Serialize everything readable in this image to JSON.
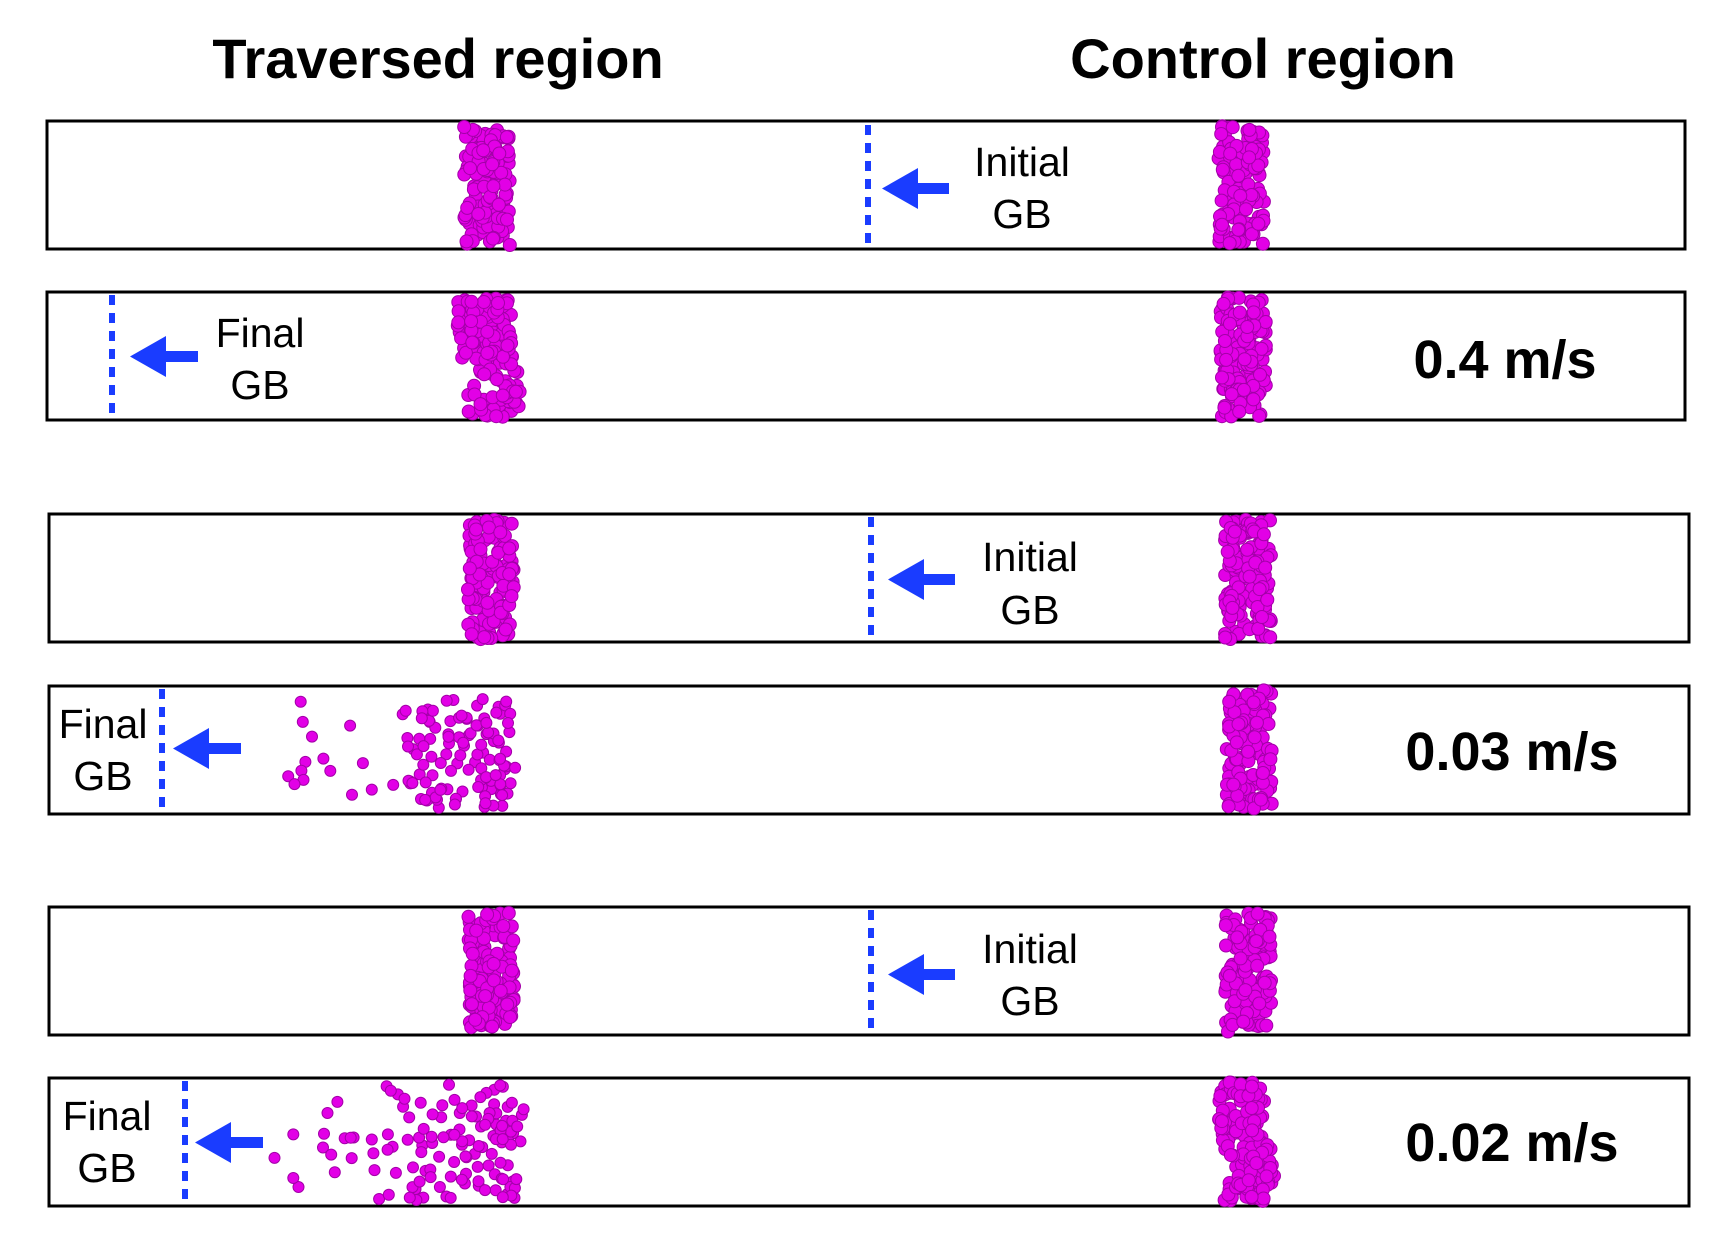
{
  "headers": {
    "traversed": "Traversed region",
    "control": "Control region"
  },
  "colors": {
    "atom": "#e200e6",
    "gb_marker": "#1a3cff",
    "frame": "#000000"
  },
  "panels": [
    {
      "type": "initial",
      "gb_label_line1": "Initial",
      "gb_label_line2": "GB",
      "speed": "",
      "solute_state": "intact"
    },
    {
      "type": "final",
      "gb_label_line1": "Final",
      "gb_label_line2": "GB",
      "speed": "0.4 m/s",
      "solute_state": "slightly-spread"
    },
    {
      "type": "initial",
      "gb_label_line1": "Initial",
      "gb_label_line2": "GB",
      "speed": "",
      "solute_state": "intact"
    },
    {
      "type": "final",
      "gb_label_line1": "Final",
      "gb_label_line2": "GB",
      "speed": "0.03 m/s",
      "solute_state": "dragged"
    },
    {
      "type": "initial",
      "gb_label_line1": "Initial",
      "gb_label_line2": "GB",
      "speed": "",
      "solute_state": "intact"
    },
    {
      "type": "final",
      "gb_label_line1": "Final",
      "gb_label_line2": "GB",
      "speed": "0.02 m/s",
      "solute_state": "dragged"
    }
  ]
}
